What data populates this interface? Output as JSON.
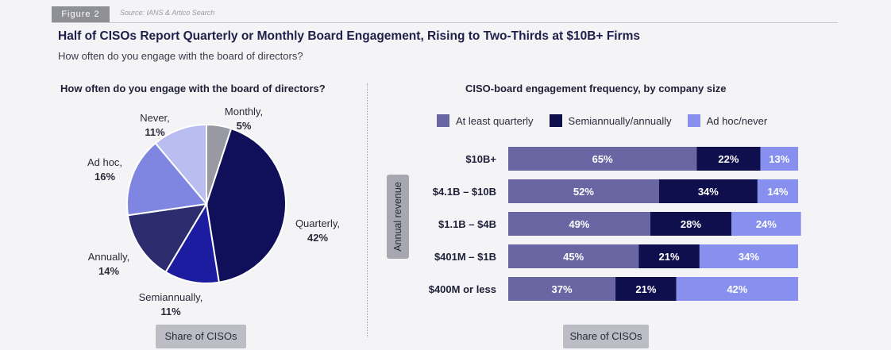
{
  "header": {
    "figure_tag": "Figure 2",
    "source": "Source: IANS & Artico Search",
    "title": "Half of CISOs Report Quarterly or Monthly Board Engagement, Rising to Two-Thirds at $10B+ Firms",
    "subtitle": "How often do you engage with the board of directors?"
  },
  "left_panel": {
    "title": "How often do you engage with the board of directors?",
    "footer": "Share of CISOs"
  },
  "right_panel": {
    "title": "CISO-board engagement frequency, by company size",
    "footer": "Share of CISOs",
    "axis_title": "Annual revenue"
  },
  "chart_data": [
    {
      "type": "pie",
      "title": "How often do you engage with the board of directors?",
      "slices": [
        {
          "label": "Monthly,",
          "value": 5,
          "display": "5%",
          "color": "#9999a4"
        },
        {
          "label": "Quarterly,",
          "value": 42,
          "display": "42%",
          "color": "#0f0f5a"
        },
        {
          "label": "Semiannually,",
          "value": 11,
          "display": "11%",
          "color": "#1c1ca0"
        },
        {
          "label": "Annually,",
          "value": 14,
          "display": "14%",
          "color": "#2c2c6e"
        },
        {
          "label": "Ad hoc,",
          "value": 16,
          "display": "16%",
          "color": "#7f86e2"
        },
        {
          "label": "Never,",
          "value": 11,
          "display": "11%",
          "color": "#b9bdf0"
        }
      ],
      "footer": "Share of CISOs"
    },
    {
      "type": "bar",
      "orientation": "horizontal",
      "stacked": true,
      "title": "CISO-board engagement frequency, by company size",
      "ylabel": "Annual revenue",
      "xlabel": "Share of CISOs",
      "categories": [
        "$10B+",
        "$4.1B – $10B",
        "$1.1B – $4B",
        "$401M – $1B",
        "$400M or less"
      ],
      "series": [
        {
          "name": "At least quarterly",
          "color": "#6a66a4",
          "values": [
            65,
            52,
            49,
            45,
            37
          ]
        },
        {
          "name": "Semiannually/annually",
          "color": "#0f0f4e",
          "values": [
            22,
            34,
            28,
            21,
            21
          ]
        },
        {
          "name": "Ad hoc/never",
          "color": "#8790ee",
          "values": [
            13,
            14,
            24,
            34,
            42
          ]
        }
      ],
      "legend_position": "top"
    }
  ]
}
